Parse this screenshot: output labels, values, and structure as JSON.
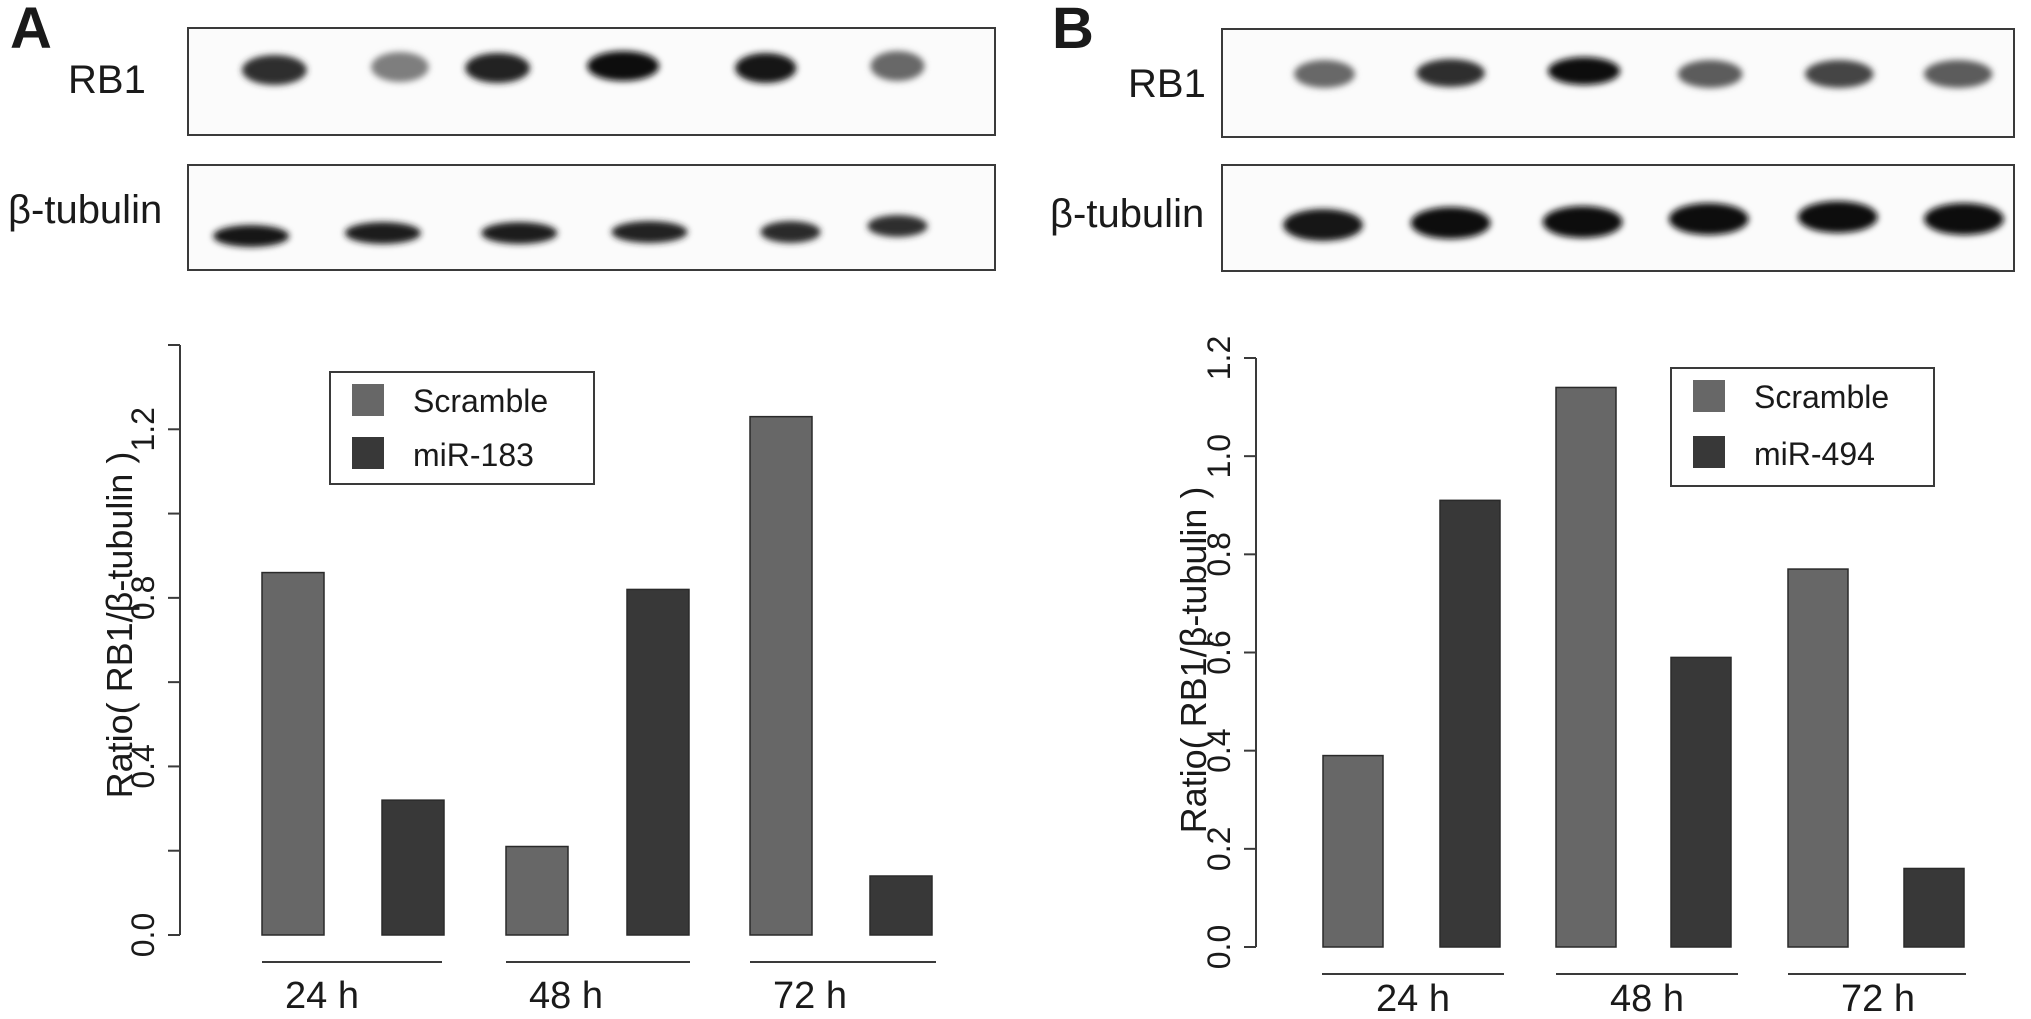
{
  "panels": [
    {
      "letter": "A",
      "blot": {
        "rows": [
          {
            "label": "RB1",
            "lanes": [
              {
                "intensity": 0.8,
                "width": 0.9
              },
              {
                "intensity": 0.45,
                "width": 0.8
              },
              {
                "intensity": 0.85,
                "width": 0.9
              },
              {
                "intensity": 0.95,
                "width": 1.0
              },
              {
                "intensity": 0.9,
                "width": 0.85
              },
              {
                "intensity": 0.55,
                "width": 0.75
              }
            ]
          },
          {
            "label": "β-tubulin",
            "lanes": [
              {
                "intensity": 0.9,
                "width": 0.95
              },
              {
                "intensity": 0.88,
                "width": 0.95
              },
              {
                "intensity": 0.88,
                "width": 0.95
              },
              {
                "intensity": 0.85,
                "width": 0.95
              },
              {
                "intensity": 0.82,
                "width": 0.75
              },
              {
                "intensity": 0.8,
                "width": 0.75
              }
            ]
          }
        ]
      },
      "chart_data": {
        "type": "bar",
        "categories": [
          "24 h",
          "48 h",
          "72 h"
        ],
        "series": [
          {
            "name": "Scramble",
            "color": "#676767",
            "values": [
              0.86,
              0.21,
              1.23
            ]
          },
          {
            "name": "miR-183",
            "color": "#383838",
            "values": [
              0.32,
              0.82,
              0.14
            ]
          }
        ],
        "ylabel": "Ratio( RB1/β-tubulin )",
        "xlabel": "",
        "ylim": [
          0,
          1.4
        ],
        "yticks": [
          0.0,
          0.4,
          0.8,
          1.2
        ],
        "ytick_labels": [
          "0.0",
          "0.4",
          "0.8",
          "1.2"
        ],
        "grid": false,
        "legend_position": "top-center"
      }
    },
    {
      "letter": "B",
      "blot": {
        "rows": [
          {
            "label": "RB1",
            "lanes": [
              {
                "intensity": 0.55,
                "width": 0.8
              },
              {
                "intensity": 0.8,
                "width": 0.9
              },
              {
                "intensity": 0.95,
                "width": 0.95
              },
              {
                "intensity": 0.6,
                "width": 0.85
              },
              {
                "intensity": 0.7,
                "width": 0.9
              },
              {
                "intensity": 0.6,
                "width": 0.9
              }
            ]
          },
          {
            "label": "β-tubulin",
            "lanes": [
              {
                "intensity": 0.92,
                "width": 0.95
              },
              {
                "intensity": 0.94,
                "width": 0.95
              },
              {
                "intensity": 0.96,
                "width": 0.95
              },
              {
                "intensity": 0.94,
                "width": 0.95
              },
              {
                "intensity": 0.95,
                "width": 0.95
              },
              {
                "intensity": 0.95,
                "width": 0.95
              }
            ]
          }
        ]
      },
      "chart_data": {
        "type": "bar",
        "categories": [
          "24 h",
          "48 h",
          "72 h"
        ],
        "series": [
          {
            "name": "Scramble",
            "color": "#676767",
            "values": [
              0.39,
              1.14,
              0.77
            ]
          },
          {
            "name": "miR-494",
            "color": "#383838",
            "values": [
              0.91,
              0.59,
              0.16
            ]
          }
        ],
        "ylabel": "Ratio( RB1/β-tubulin )",
        "xlabel": "",
        "ylim": [
          0,
          1.2
        ],
        "yticks": [
          0.0,
          0.2,
          0.4,
          0.6,
          0.8,
          1.0,
          1.2
        ],
        "ytick_labels": [
          "0.0",
          "0.2",
          "0.4",
          "0.6",
          "0.8",
          "1.0",
          "1.2"
        ],
        "grid": false,
        "legend_position": "top-right"
      }
    }
  ]
}
